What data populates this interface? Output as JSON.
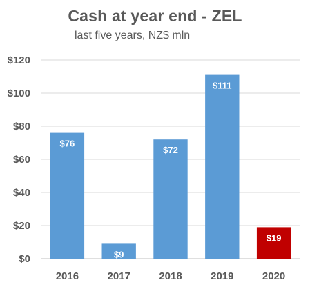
{
  "chart_data": {
    "type": "bar",
    "title": "Cash at year end - ZEL",
    "subtitle": "last five years, NZ$ mln",
    "categories": [
      "2016",
      "2017",
      "2018",
      "2019",
      "2020"
    ],
    "values": [
      76,
      9,
      72,
      111,
      19
    ],
    "data_labels": [
      "$76",
      "$9",
      "$72",
      "$111",
      "$19"
    ],
    "ylim": [
      0,
      120
    ],
    "yticks": [
      0,
      20,
      40,
      60,
      80,
      100,
      120
    ],
    "ytick_labels": [
      "$0",
      "$20",
      "$40",
      "$60",
      "$80",
      "$100",
      "$120"
    ],
    "grid": true,
    "legend": "none",
    "colors": {
      "bar": "#5B9BD5",
      "highlight_bar": "#C00000",
      "grid": "#D9D9D9",
      "axis": "#BFBFBF"
    },
    "highlight_index": 4
  }
}
